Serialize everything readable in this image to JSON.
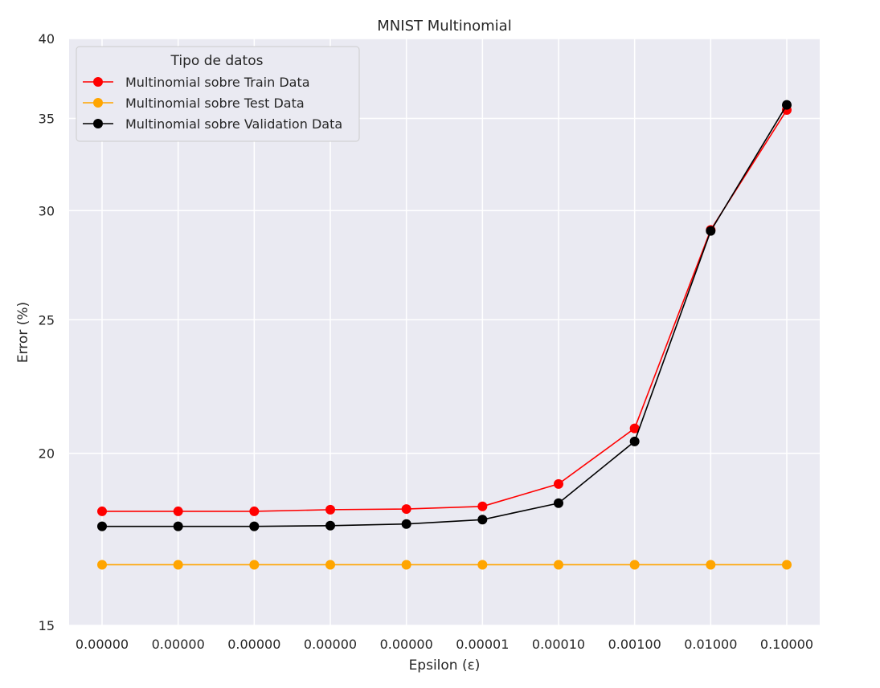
{
  "chart_data": {
    "type": "line",
    "title": "MNIST Multinomial",
    "xlabel": "Epsilon (ε)",
    "ylabel": "Error (%)",
    "categories": [
      "0.00000",
      "0.00000",
      "0.00000",
      "0.00000",
      "0.00000",
      "0.00001",
      "0.00010",
      "0.00100",
      "0.01000",
      "0.10000"
    ],
    "y_scale": "log",
    "ylim": [
      15,
      40
    ],
    "y_ticks": [
      15,
      20,
      25,
      30,
      35,
      40
    ],
    "grid": true,
    "legend_title": "Tipo de datos",
    "legend_position": "top-left",
    "series": [
      {
        "name": "Multinomial sobre Train Data",
        "color": "#ff0000",
        "values": [
          18.15,
          18.15,
          18.15,
          18.2,
          18.22,
          18.3,
          19.0,
          20.85,
          29.05,
          35.5
        ]
      },
      {
        "name": "Multinomial sobre Test Data",
        "color": "#ffa500",
        "values": [
          16.6,
          16.6,
          16.6,
          16.6,
          16.6,
          16.6,
          16.6,
          16.6,
          16.6,
          16.6
        ]
      },
      {
        "name": "Multinomial sobre Validation Data",
        "color": "#000000",
        "values": [
          17.7,
          17.7,
          17.7,
          17.72,
          17.77,
          17.9,
          18.4,
          20.4,
          29.0,
          35.8
        ]
      }
    ]
  }
}
